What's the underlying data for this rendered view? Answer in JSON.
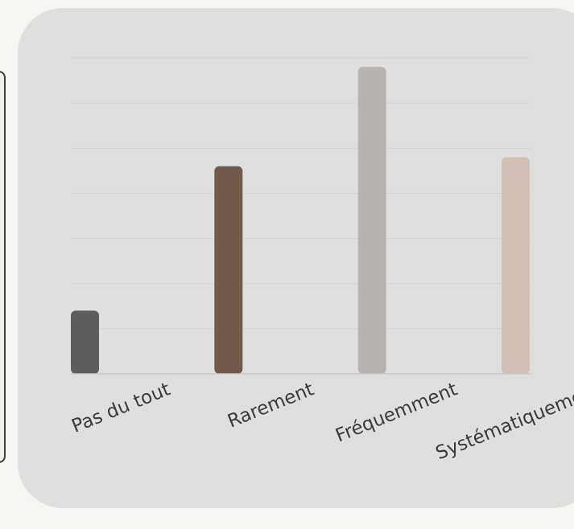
{
  "chart_data": {
    "type": "bar",
    "categories": [
      "Pas du tout",
      "Rarement",
      "Fréquemment",
      "Systématiquement"
    ],
    "values": [
      1.4,
      4.6,
      6.8,
      4.8
    ],
    "ylim": [
      0,
      7
    ],
    "grid": true,
    "colors": [
      "#5d5e5c",
      "#705a4b",
      "#b8b3b1",
      "#d1c0b3"
    ],
    "title": "",
    "xlabel": "",
    "ylabel": ""
  }
}
